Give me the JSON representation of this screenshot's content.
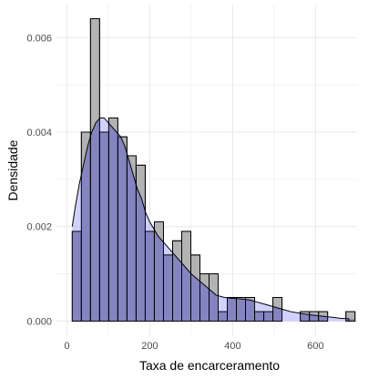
{
  "chart_data": {
    "type": "histogram",
    "xlabel": "Taxa de encarceramento",
    "ylabel": "Densidade",
    "xlim": [
      -25,
      700
    ],
    "ylim": [
      -0.0003,
      0.0067
    ],
    "x_ticks": [
      0,
      200,
      400,
      600
    ],
    "y_ticks": [
      0,
      0.002,
      0.004,
      0.006
    ],
    "y_tick_labels": [
      "0.000",
      "0.002",
      "0.004",
      "0.006"
    ],
    "x_minor": [
      100,
      300,
      500
    ],
    "y_minor": [
      0.001,
      0.003,
      0.005
    ],
    "grid": true,
    "bin_width": 22,
    "bins": [
      {
        "x0": 13,
        "x1": 35,
        "value": 0.0019
      },
      {
        "x0": 35,
        "x1": 57,
        "value": 0.004
      },
      {
        "x0": 57,
        "x1": 79,
        "value": 0.0064
      },
      {
        "x0": 79,
        "x1": 101,
        "value": 0.004
      },
      {
        "x0": 101,
        "x1": 123,
        "value": 0.0043
      },
      {
        "x0": 123,
        "x1": 145,
        "value": 0.0039
      },
      {
        "x0": 145,
        "x1": 167,
        "value": 0.0035
      },
      {
        "x0": 167,
        "x1": 189,
        "value": 0.0033
      },
      {
        "x0": 189,
        "x1": 211,
        "value": 0.0019
      },
      {
        "x0": 211,
        "x1": 233,
        "value": 0.0021
      },
      {
        "x0": 233,
        "x1": 255,
        "value": 0.0014
      },
      {
        "x0": 255,
        "x1": 277,
        "value": 0.0017
      },
      {
        "x0": 277,
        "x1": 299,
        "value": 0.0019
      },
      {
        "x0": 299,
        "x1": 321,
        "value": 0.0014
      },
      {
        "x0": 321,
        "x1": 343,
        "value": 0.001
      },
      {
        "x0": 343,
        "x1": 365,
        "value": 0.001
      },
      {
        "x0": 365,
        "x1": 387,
        "value": 0.0002
      },
      {
        "x0": 387,
        "x1": 409,
        "value": 0.0005
      },
      {
        "x0": 409,
        "x1": 431,
        "value": 0.0005
      },
      {
        "x0": 431,
        "x1": 453,
        "value": 0.0005
      },
      {
        "x0": 453,
        "x1": 475,
        "value": 0.0002
      },
      {
        "x0": 475,
        "x1": 497,
        "value": 0.0002
      },
      {
        "x0": 497,
        "x1": 519,
        "value": 0.0005
      },
      {
        "x0": 519,
        "x1": 541,
        "value": 0.0
      },
      {
        "x0": 541,
        "x1": 563,
        "value": 0.0
      },
      {
        "x0": 563,
        "x1": 585,
        "value": 0.0002
      },
      {
        "x0": 585,
        "x1": 607,
        "value": 0.0002
      },
      {
        "x0": 607,
        "x1": 629,
        "value": 0.0002
      },
      {
        "x0": 629,
        "x1": 651,
        "value": 0.0
      },
      {
        "x0": 651,
        "x1": 673,
        "value": 0.0
      },
      {
        "x0": 673,
        "x1": 695,
        "value": 0.0002
      }
    ],
    "density_curve": {
      "x": [
        13,
        20,
        30,
        40,
        50,
        60,
        70,
        80,
        90,
        100,
        110,
        120,
        130,
        140,
        150,
        160,
        170,
        180,
        190,
        200,
        220,
        240,
        260,
        280,
        300,
        320,
        340,
        360,
        380,
        400,
        420,
        440,
        460,
        480,
        500,
        520,
        540,
        560,
        580,
        600,
        620,
        640,
        660,
        680
      ],
      "y": [
        0.002,
        0.0024,
        0.0029,
        0.0033,
        0.0037,
        0.004,
        0.0042,
        0.0043,
        0.0043,
        0.0042,
        0.0041,
        0.004,
        0.0039,
        0.0037,
        0.0034,
        0.0031,
        0.0028,
        0.0026,
        0.0023,
        0.0021,
        0.0018,
        0.0016,
        0.0014,
        0.0012,
        0.001,
        0.00085,
        0.0007,
        0.00055,
        0.0005,
        0.00048,
        0.00047,
        0.00045,
        0.0004,
        0.00035,
        0.0003,
        0.00025,
        0.0002,
        0.00017,
        0.00014,
        0.00012,
        0.0001,
        8e-05,
        6e-05,
        5e-05
      ]
    },
    "colors": {
      "histogram_fill": "#b3b3b3",
      "bar_stroke": "#000000",
      "density_fill": "#9999ff",
      "density_stroke": "#000000",
      "grid": "#ebebeb"
    }
  }
}
